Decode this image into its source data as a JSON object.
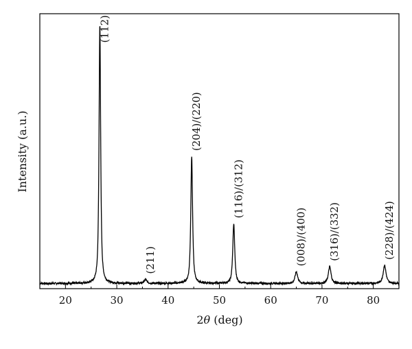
{
  "chart_data": {
    "type": "line",
    "title": "",
    "xlabel": {
      "prefix": "2",
      "var": "θ",
      "suffix": " (deg)"
    },
    "ylabel": "Intensity (a.u.)",
    "xlim": [
      15,
      85
    ],
    "ylim": [
      0,
      1.06
    ],
    "x_ticks": [
      20,
      30,
      40,
      50,
      60,
      70,
      80
    ],
    "y_ticks_shown": false,
    "grid": false,
    "legend": "none",
    "baseline": 0.02,
    "peaks": [
      {
        "x": 26.7,
        "height": 1.0,
        "width": 0.18,
        "label": "(112)"
      },
      {
        "x": 35.6,
        "height": 0.015,
        "width": 0.3,
        "label": "(211)"
      },
      {
        "x": 44.6,
        "height": 0.49,
        "width": 0.2,
        "label": "(204)/(220)"
      },
      {
        "x": 52.8,
        "height": 0.23,
        "width": 0.22,
        "label": "(116)/(312)"
      },
      {
        "x": 65.0,
        "height": 0.045,
        "width": 0.3,
        "label": "(008)/(400)"
      },
      {
        "x": 71.5,
        "height": 0.065,
        "width": 0.3,
        "label": "(316)/(332)"
      },
      {
        "x": 82.2,
        "height": 0.07,
        "width": 0.32,
        "label": "(228)/(424)"
      }
    ],
    "colors": {
      "line": "#000000",
      "axis": "#000000"
    }
  }
}
